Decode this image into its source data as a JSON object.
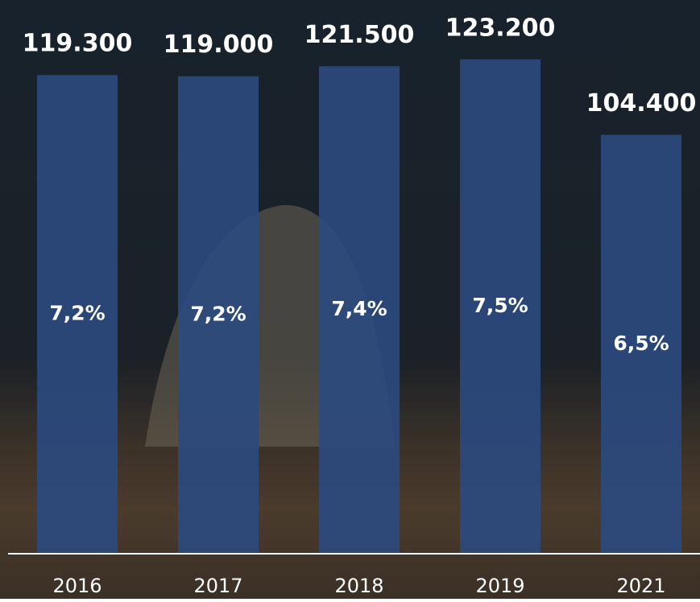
{
  "chart_data": {
    "type": "bar",
    "categories": [
      "2016",
      "2017",
      "2018",
      "2019",
      "2021"
    ],
    "values": [
      119300,
      119000,
      121500,
      123200,
      104400
    ],
    "value_labels": [
      "119.300",
      "119.000",
      "121.500",
      "123.200",
      "104.400"
    ],
    "inner_labels": {
      "values": [
        7.2,
        7.2,
        7.4,
        7.5,
        6.5
      ],
      "value_labels": [
        "7,2%",
        "7,2%",
        "7,4%",
        "7,5%",
        "6,5%"
      ]
    },
    "color": "#2b4a80",
    "ylim": [
      0,
      138000
    ]
  }
}
